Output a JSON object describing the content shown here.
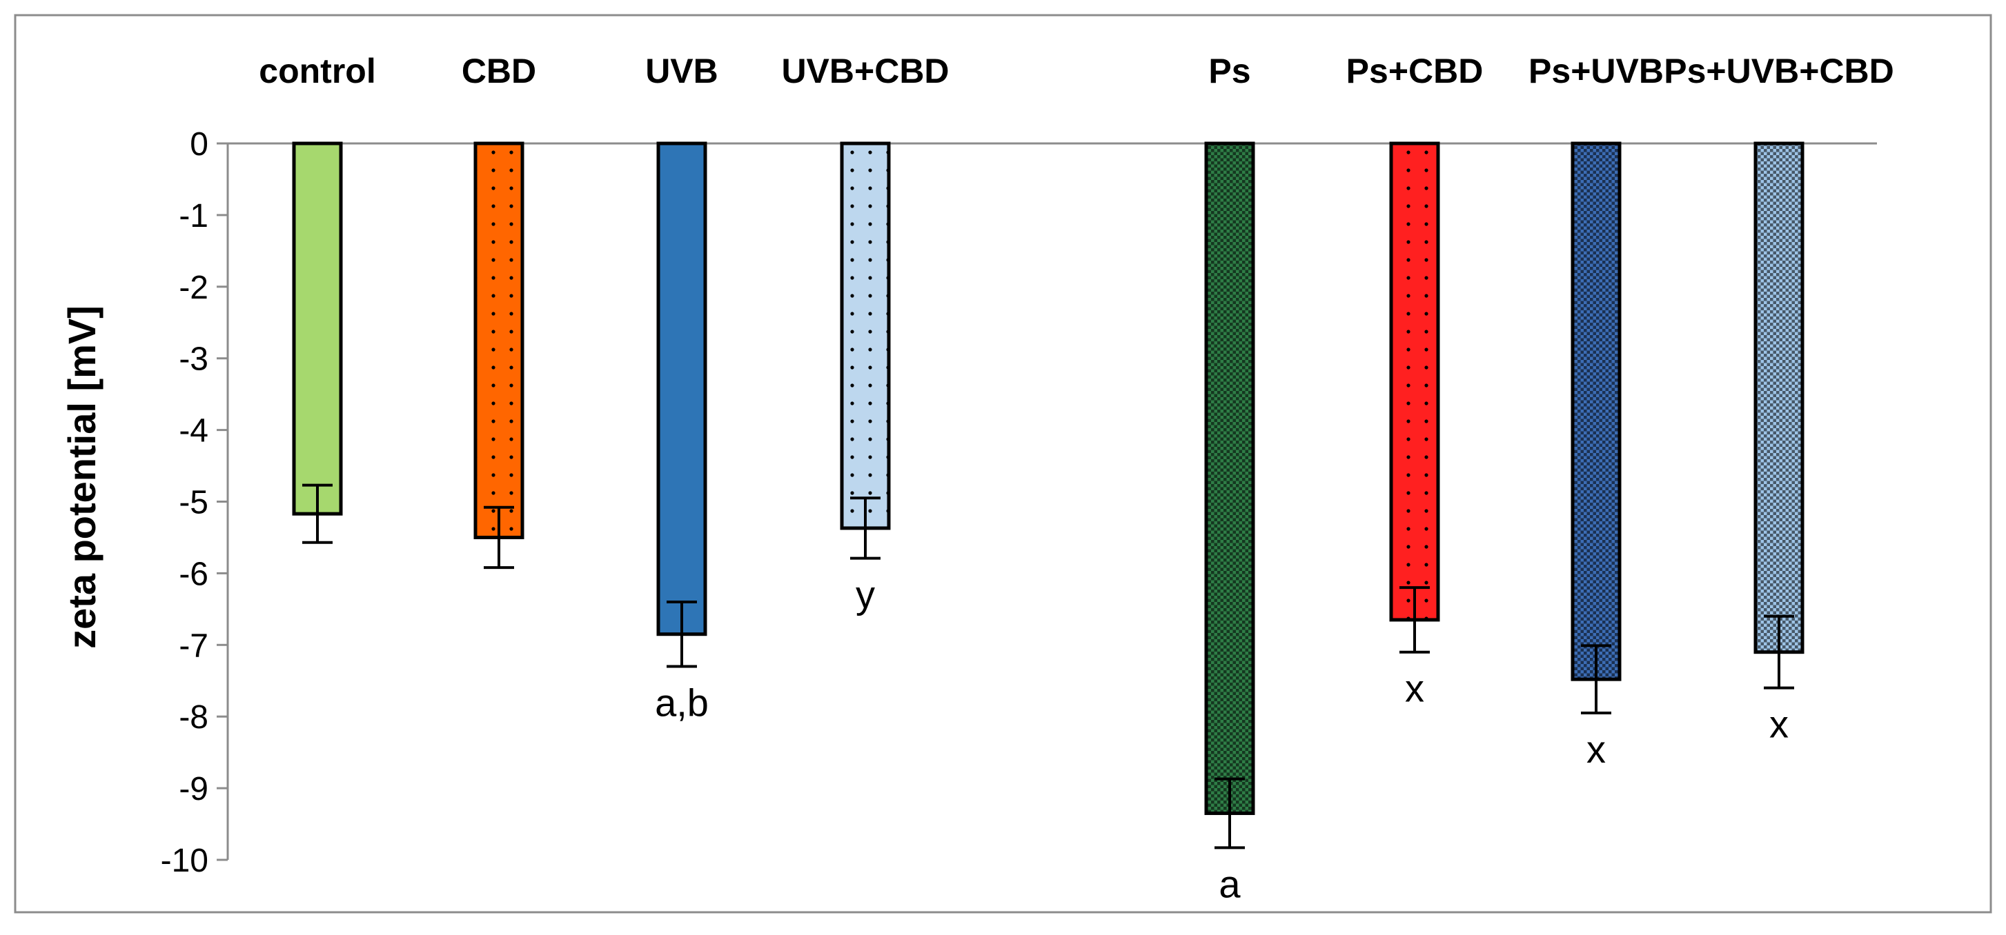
{
  "chart_data": {
    "type": "bar",
    "title": "",
    "xlabel": "",
    "ylabel": "zeta potential [mV]",
    "ylim": [
      -10,
      0
    ],
    "yticks": [
      0,
      -1,
      -2,
      -3,
      -4,
      -5,
      -6,
      -7,
      -8,
      -9,
      -10
    ],
    "ytick_labels": [
      "0",
      "-1",
      "-2",
      "-3",
      "-4",
      "-5",
      "-6",
      "-7",
      "-8",
      "-9",
      "-10"
    ],
    "grid": false,
    "legend": "none",
    "categories": [
      "control",
      "CBD",
      "UVB",
      "UVB+CBD",
      "Ps",
      "Ps+CBD",
      "Ps+UVB",
      "Ps+UVB+CBD"
    ],
    "values": [
      -5.17,
      -5.5,
      -6.85,
      -5.37,
      -9.35,
      -6.65,
      -7.48,
      -7.1
    ],
    "errors": [
      0.4,
      0.42,
      0.45,
      0.42,
      0.48,
      0.45,
      0.47,
      0.5
    ],
    "annotations": [
      "",
      "",
      "a,b",
      "y",
      "a",
      "x",
      "x",
      "x"
    ],
    "colors": [
      "#a6d86e",
      "#ff6600",
      "#2e75b6",
      "#bdd7ee",
      "#2e7d46",
      "#ff2020",
      "#3c6db5",
      "#9dc3e6"
    ],
    "patterns": [
      "solid",
      "dots",
      "solid",
      "dots",
      "checker",
      "dots",
      "checker",
      "checker"
    ]
  }
}
